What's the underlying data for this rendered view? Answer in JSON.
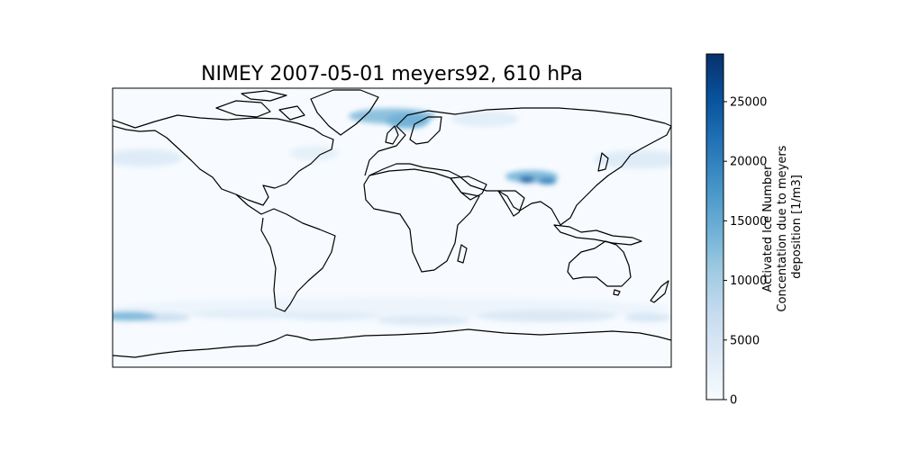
{
  "figure": {
    "title": "NIMEY 2007-05-01 meyers92, 610 hPa"
  },
  "map": {
    "projection": "PlateCarree",
    "extent_lon": [
      -180,
      180
    ],
    "extent_lat": [
      -90,
      90
    ],
    "coastlines": true,
    "colormap": "Blues",
    "background_color": "#f7fbff",
    "features": [
      {
        "lon": 0,
        "lat": 72,
        "rx": 28,
        "ry": 5,
        "value": 12000
      },
      {
        "lon": 10,
        "lat": 69,
        "rx": 14,
        "ry": 5,
        "value": 14000
      },
      {
        "lon": 60,
        "lat": 70,
        "rx": 22,
        "ry": 5,
        "value": 3000
      },
      {
        "lon": 90,
        "lat": 33,
        "rx": 17,
        "ry": 4,
        "value": 13000
      },
      {
        "lon": 87,
        "lat": 31,
        "rx": 5,
        "ry": 2,
        "value": 24000
      },
      {
        "lon": 100,
        "lat": 30,
        "rx": 6,
        "ry": 2,
        "value": 20000
      },
      {
        "lon": 160,
        "lat": 44,
        "rx": 30,
        "ry": 6,
        "value": 3500
      },
      {
        "lon": -160,
        "lat": 45,
        "rx": 25,
        "ry": 6,
        "value": 3500
      },
      {
        "lon": -50,
        "lat": 48,
        "rx": 16,
        "ry": 5,
        "value": 2500
      },
      {
        "lon": -170,
        "lat": -57,
        "rx": 18,
        "ry": 3,
        "value": 13000
      },
      {
        "lon": -150,
        "lat": -58,
        "rx": 20,
        "ry": 3,
        "value": 6000
      },
      {
        "lon": -90,
        "lat": -56,
        "rx": 40,
        "ry": 3,
        "value": 3000
      },
      {
        "lon": -40,
        "lat": -57,
        "rx": 30,
        "ry": 3,
        "value": 3500
      },
      {
        "lon": 20,
        "lat": -60,
        "rx": 30,
        "ry": 3,
        "value": 4000
      },
      {
        "lon": 100,
        "lat": -57,
        "rx": 45,
        "ry": 4,
        "value": 4000
      },
      {
        "lon": 165,
        "lat": -58,
        "rx": 15,
        "ry": 3,
        "value": 4500
      },
      {
        "lon": 0,
        "lat": -52,
        "rx": 180,
        "ry": 7,
        "value": 1500
      }
    ]
  },
  "colorbar": {
    "label_lines": [
      "Activated Ice Number",
      "Concentation due to meyers",
      "deposition [1/m3]"
    ],
    "range": [
      0,
      29000
    ],
    "ticks": [
      {
        "value": 0,
        "label": "0"
      },
      {
        "value": 5000,
        "label": "5000"
      },
      {
        "value": 10000,
        "label": "10000"
      },
      {
        "value": 15000,
        "label": "15000"
      },
      {
        "value": 20000,
        "label": "20000"
      },
      {
        "value": 25000,
        "label": "25000"
      }
    ],
    "stops": [
      "#f7fbff",
      "#deebf7",
      "#c6dbef",
      "#9ecae1",
      "#6baed6",
      "#4292c6",
      "#2171b5",
      "#08519c",
      "#08306b"
    ]
  }
}
